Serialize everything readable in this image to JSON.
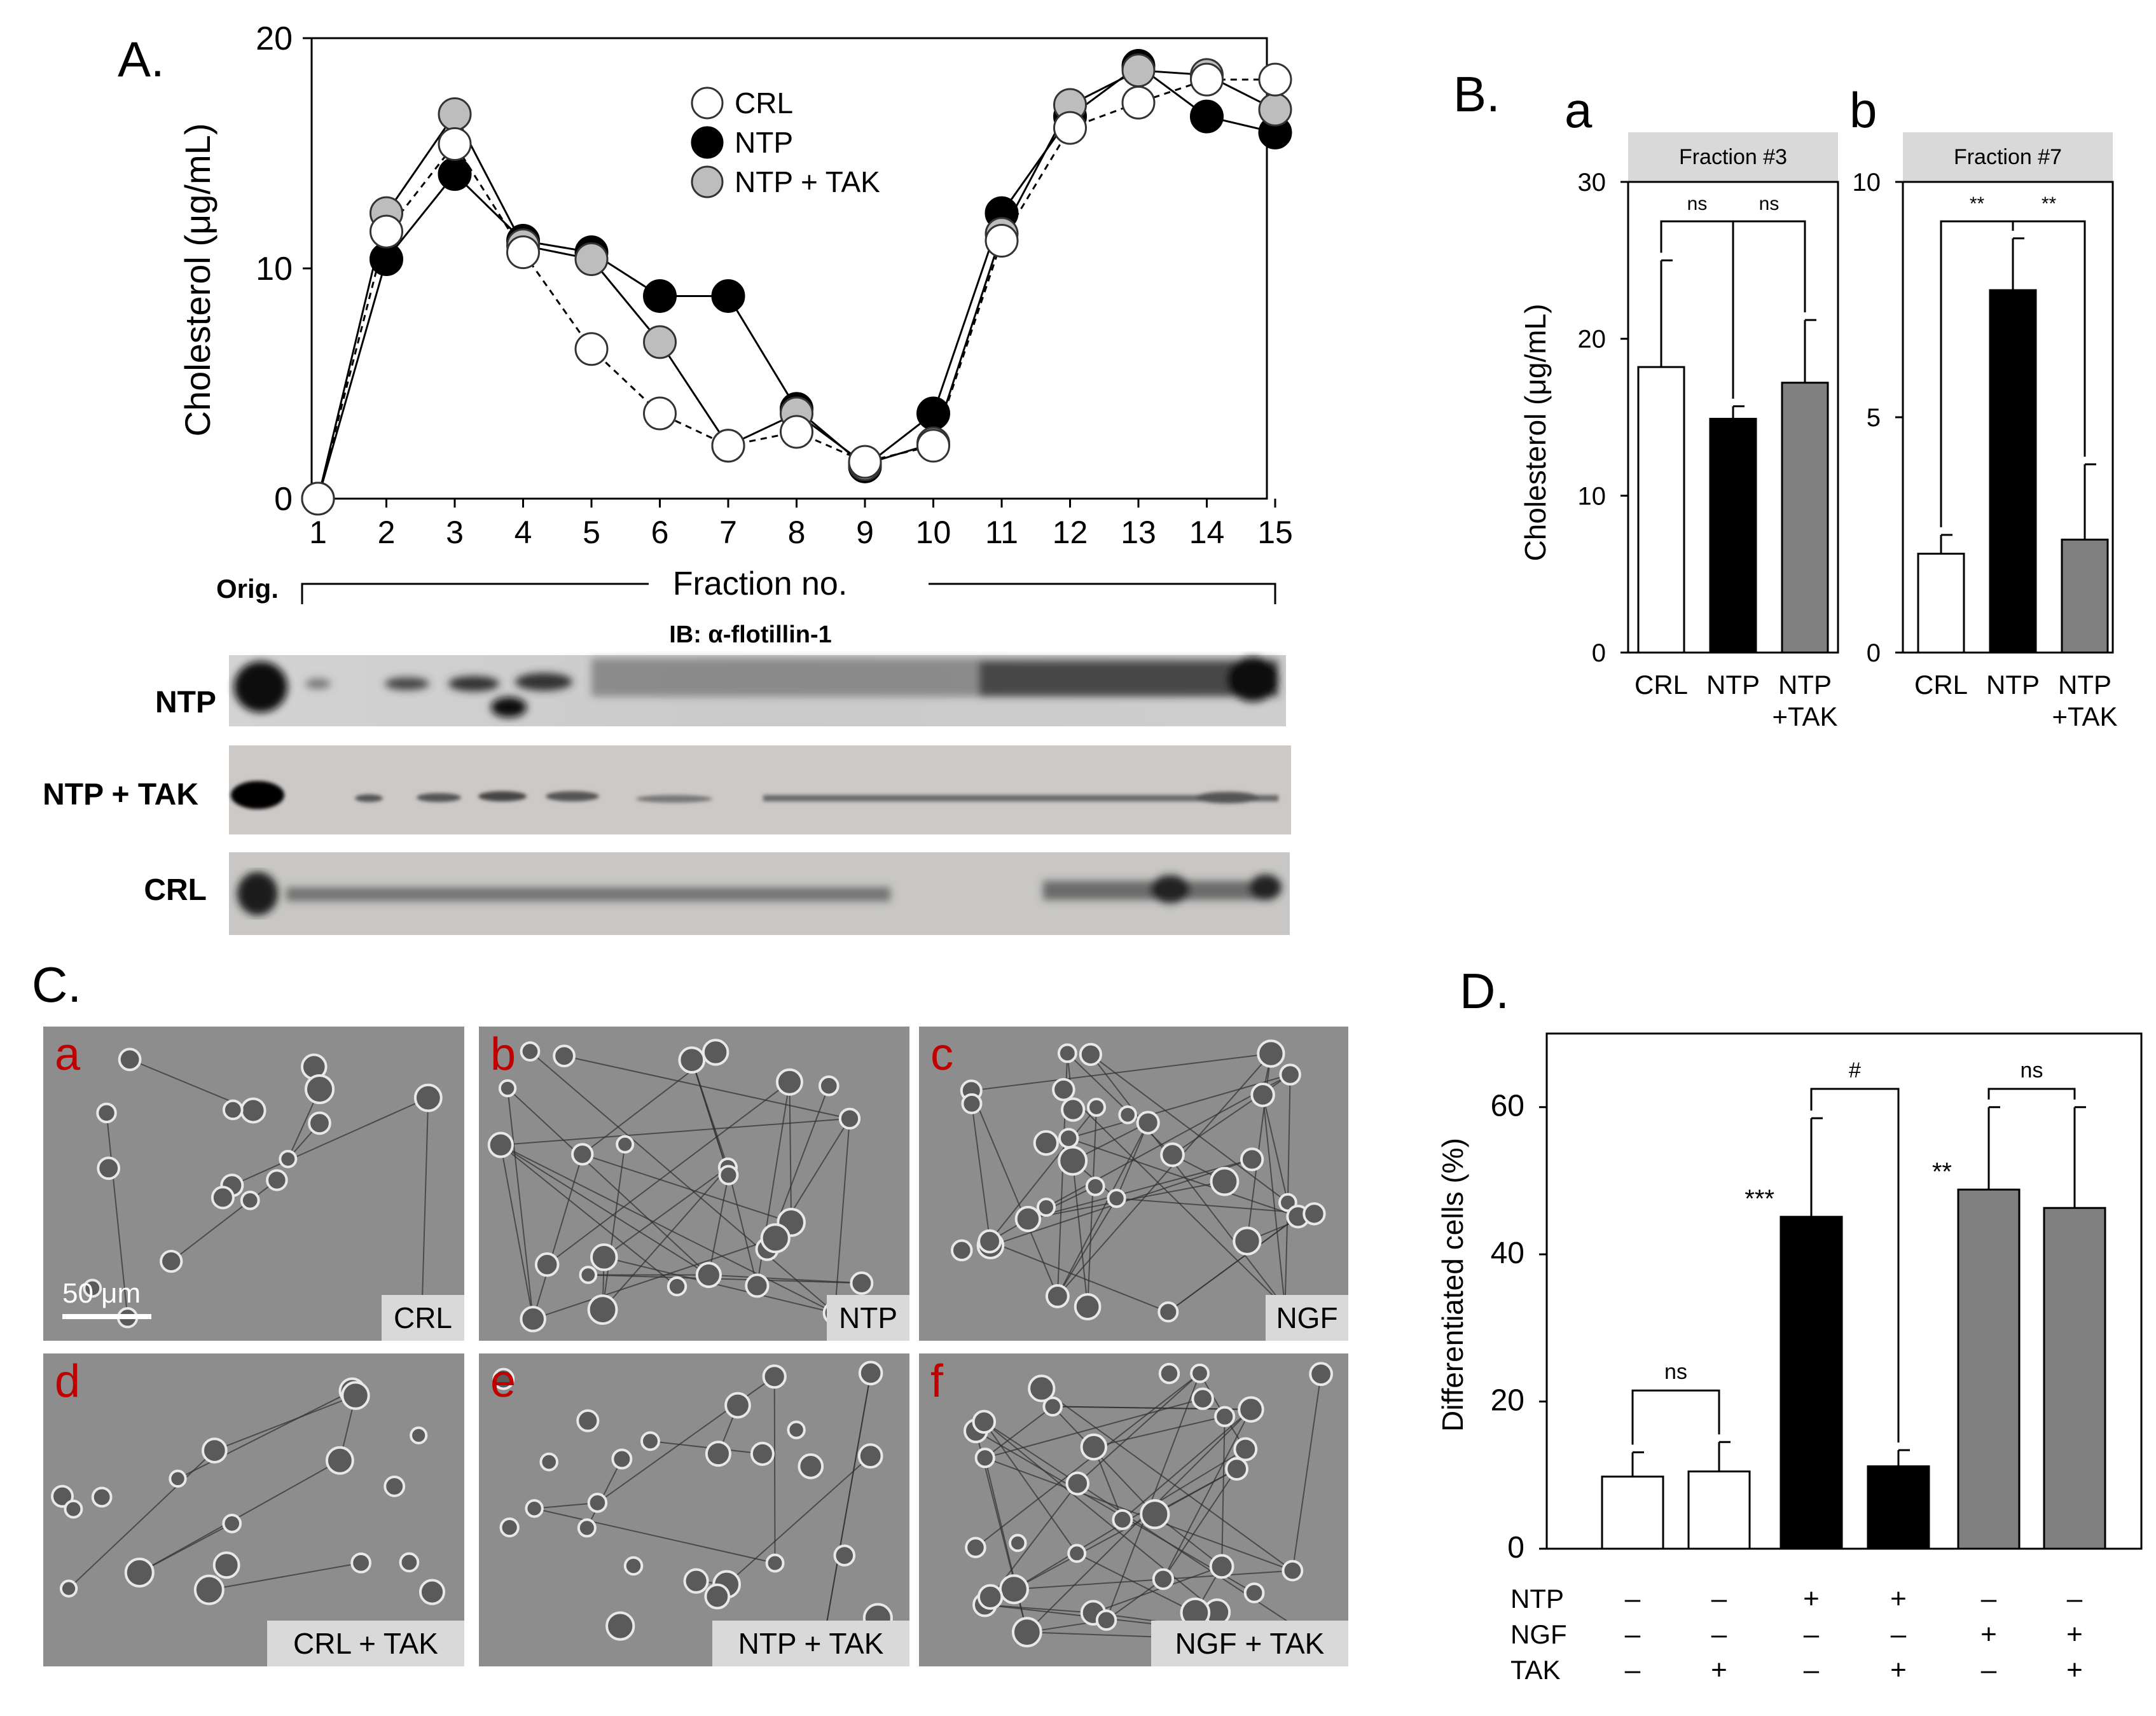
{
  "panels": {
    "A": "A.",
    "B": "B.",
    "B_a": "a",
    "B_b": "b",
    "C": "C.",
    "D": "D."
  },
  "chart_data": [
    {
      "id": "A",
      "type": "line",
      "ylabel": "Cholesterol (μg/mL)",
      "xlabel": "Fraction no.",
      "x": [
        1,
        2,
        3,
        4,
        5,
        6,
        7,
        8,
        9,
        10,
        11,
        12,
        13,
        14,
        15
      ],
      "ylim": [
        0,
        20
      ],
      "yticks": [
        0,
        10,
        20
      ],
      "xticks": [
        "1",
        "2",
        "3",
        "4",
        "5",
        "6",
        "7",
        "8",
        "9",
        "10",
        "11",
        "12",
        "13",
        "14",
        "15"
      ],
      "series": [
        {
          "name": "NTP",
          "color": "#000000",
          "line": "solid",
          "values": [
            0,
            10.4,
            14.1,
            11.2,
            10.7,
            8.8,
            8.8,
            3.9,
            1.4,
            3.7,
            12.4,
            16.6,
            18.8,
            16.6,
            15.9
          ]
        },
        {
          "name": "NTP + TAK",
          "color": "#bdbdbd",
          "line": "solid",
          "values": [
            0,
            12.4,
            16.7,
            11.0,
            10.4,
            6.8,
            2.3,
            3.7,
            1.5,
            2.4,
            11.5,
            17.1,
            18.6,
            18.4,
            16.9
          ]
        },
        {
          "name": "CRL",
          "color": "#ffffff",
          "line": "dashed",
          "values": [
            0,
            11.6,
            15.4,
            10.7,
            6.5,
            3.7,
            2.3,
            2.9,
            1.6,
            2.3,
            11.2,
            16.1,
            17.2,
            18.2,
            18.2
          ]
        }
      ],
      "legend_order": [
        "CRL",
        "NTP",
        "NTP + TAK"
      ],
      "legend": "top-center",
      "orig_label": "Orig.",
      "ib_label": "IB: α-flotillin-1",
      "blot_rows": [
        "NTP",
        "NTP + TAK",
        "CRL"
      ]
    },
    {
      "id": "B-a",
      "type": "bar",
      "title": "Fraction #3",
      "ylabel": "Cholesterol (μg/mL)",
      "ylim": [
        0,
        30
      ],
      "yticks": [
        0,
        10,
        20,
        30
      ],
      "categories": [
        "CRL",
        "NTP",
        "NTP +TAK"
      ],
      "values": [
        18.2,
        14.9,
        17.2
      ],
      "errors": [
        6.8,
        0.8,
        4.0
      ],
      "colors": [
        "#ffffff",
        "#000000",
        "#808080"
      ],
      "significance": [
        {
          "from": 0,
          "to": 1,
          "label": "ns"
        },
        {
          "from": 1,
          "to": 2,
          "label": "ns"
        }
      ]
    },
    {
      "id": "B-b",
      "type": "bar",
      "title": "Fraction #7",
      "ylim": [
        0,
        10
      ],
      "yticks": [
        0,
        5,
        10
      ],
      "categories": [
        "CRL",
        "NTP",
        "NTP +TAK"
      ],
      "values": [
        2.1,
        7.7,
        2.4
      ],
      "errors": [
        0.4,
        1.1,
        1.6
      ],
      "colors": [
        "#ffffff",
        "#000000",
        "#808080"
      ],
      "significance": [
        {
          "from": 0,
          "to": 1,
          "label": "**"
        },
        {
          "from": 1,
          "to": 2,
          "label": "**"
        }
      ]
    },
    {
      "id": "D",
      "type": "bar",
      "ylabel": "Differentiated cells (%)",
      "ylim": [
        0,
        70
      ],
      "yticks": [
        0,
        20,
        40,
        60
      ],
      "values": [
        9.8,
        10.5,
        45.1,
        11.2,
        48.8,
        46.3
      ],
      "errors": [
        3.3,
        4.0,
        13.4,
        2.2,
        11.2,
        13.7
      ],
      "colors": [
        "#ffffff",
        "#ffffff",
        "#000000",
        "#000000",
        "#808080",
        "#808080"
      ],
      "bar_marks": [
        "",
        "",
        "***",
        "",
        "**",
        ""
      ],
      "significance": [
        {
          "from": 0,
          "to": 1,
          "label": "ns"
        },
        {
          "from": 2,
          "to": 3,
          "label": "#"
        },
        {
          "from": 4,
          "to": 5,
          "label": "ns"
        }
      ],
      "conditions": [
        {
          "name": "NTP",
          "values": [
            "–",
            "–",
            "+",
            "+",
            "–",
            "–"
          ]
        },
        {
          "name": "NGF",
          "values": [
            "–",
            "–",
            "–",
            "–",
            "+",
            "+"
          ]
        },
        {
          "name": "TAK",
          "values": [
            "–",
            "+",
            "–",
            "+",
            "–",
            "+"
          ]
        }
      ]
    }
  ],
  "micrographs": [
    {
      "letter": "a",
      "label": "CRL",
      "scale": "50 μm"
    },
    {
      "letter": "b",
      "label": "NTP",
      "scale": ""
    },
    {
      "letter": "c",
      "label": "NGF",
      "scale": ""
    },
    {
      "letter": "d",
      "label": "CRL + TAK",
      "scale": ""
    },
    {
      "letter": "e",
      "label": "NTP + TAK",
      "scale": ""
    },
    {
      "letter": "f",
      "label": "NGF + TAK",
      "scale": ""
    }
  ]
}
